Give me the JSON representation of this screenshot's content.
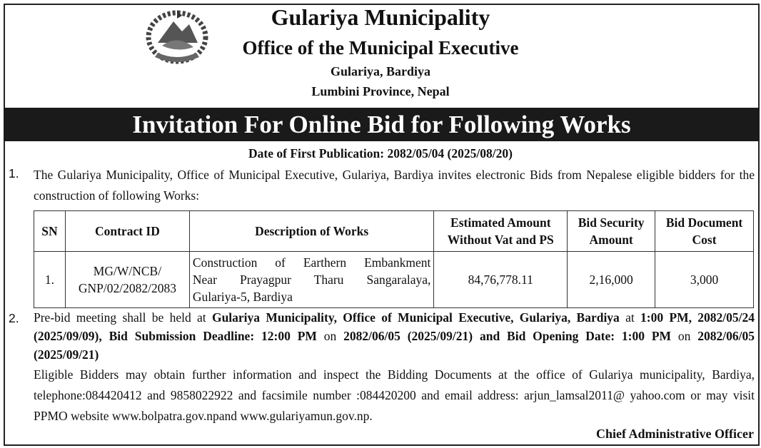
{
  "header": {
    "title": "Gulariya Municipality",
    "office": "Office of the Municipal Executive",
    "address": "Gulariya, Bardiya",
    "province": "Lumbini Province, Nepal",
    "emblem": "nepal-government-emblem"
  },
  "banner": "Invitation For Online Bid for Following Works",
  "publication_date": "Date of First Publication: 2082/05/04 (2025/08/20)",
  "item1": {
    "number": "1.",
    "text": "The Gulariya Municipality, Office of Municipal Executive, Gulariya, Bardiya invites electronic Bids from Nepalese eligible bidders for the construction of following Works:"
  },
  "table": {
    "headers": [
      "SN",
      "Contract ID",
      "Description of Works",
      "Estimated Amount Without Vat and PS",
      "Bid Security Amount",
      "Bid Document Cost"
    ],
    "rows": [
      {
        "sn": "1.",
        "contract_id": "MG/W/NCB/ GNP/02/2082/2083",
        "description_lines": [
          "Construction of Earthern Embankment",
          "Near Prayagpur Tharu Sangaralaya,",
          "Gulariya-5, Bardiya"
        ],
        "estimated_amount": "84,76,778.11",
        "bid_security": "2,16,000",
        "document_cost": "3,000"
      }
    ]
  },
  "item2": {
    "number": "2.",
    "segments": [
      {
        "text": "Pre-bid meeting shall be held at ",
        "bold": false
      },
      {
        "text": "Gulariya Municipality, Office of Municipal Executive, Gulariya, Bardiya",
        "bold": true
      },
      {
        "text": " at ",
        "bold": false
      },
      {
        "text": "1:00 PM, 2082/05/24 (2025/09/09), Bid Submission Deadline: 12:00 PM",
        "bold": true
      },
      {
        "text": " on ",
        "bold": false
      },
      {
        "text": "2082/06/05 (2025/09/21) and Bid Opening Date: 1:00 PM",
        "bold": true
      },
      {
        "text": " on ",
        "bold": false
      },
      {
        "text": "2082/06/05 (2025/09/21)",
        "bold": true
      }
    ],
    "contact": "Eligible Bidders may obtain further information and inspect the Bidding Documents at the office of Gulariya municipality, Bardiya, telephone:084420412 and 9858022922 and facsimile number :084420200 and email address: arjun_lamsal2011@ yahoo.com or may visit PPMO website www.bolpatra.gov.npand www.gulariyamun.gov.np."
  },
  "signature": "Chief Administrative Officer"
}
